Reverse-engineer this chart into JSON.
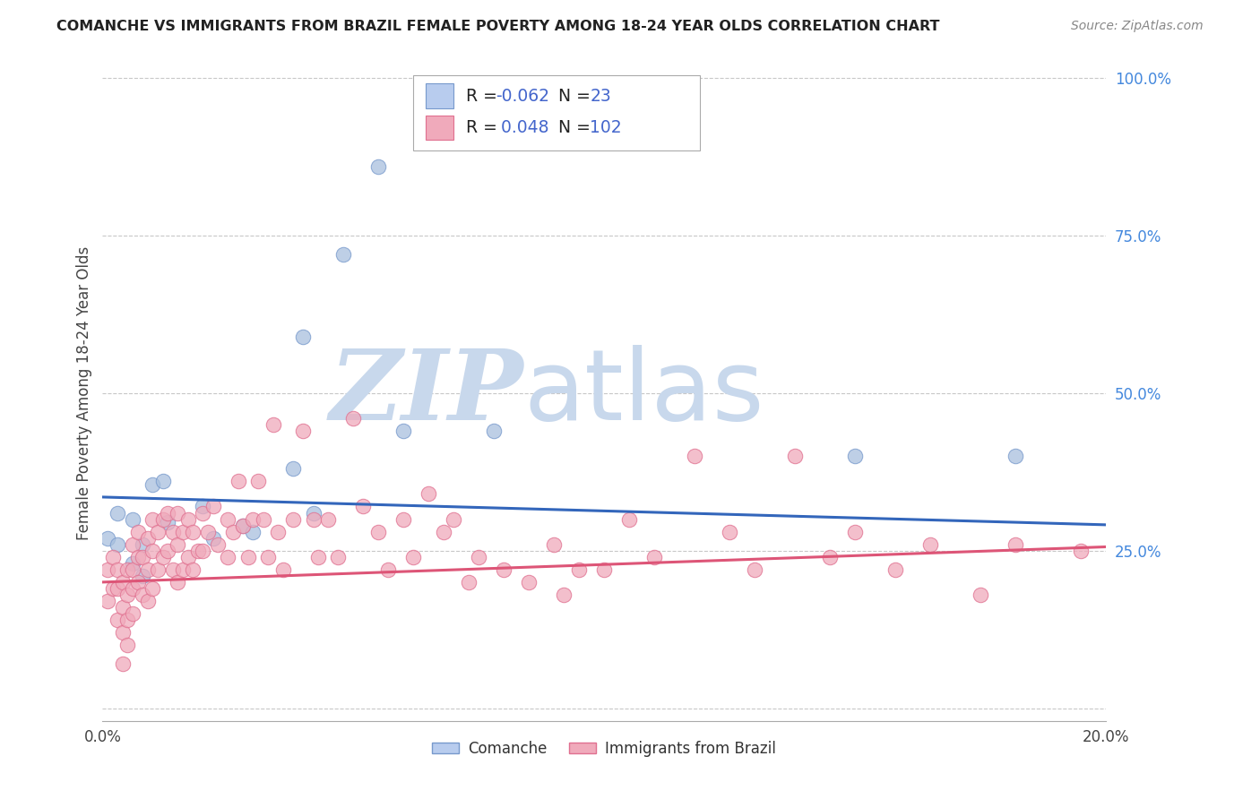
{
  "title": "COMANCHE VS IMMIGRANTS FROM BRAZIL FEMALE POVERTY AMONG 18-24 YEAR OLDS CORRELATION CHART",
  "source": "Source: ZipAtlas.com",
  "ylabel": "Female Poverty Among 18-24 Year Olds",
  "background_color": "#ffffff",
  "xlim": [
    0.0,
    0.2
  ],
  "ylim": [
    -0.02,
    1.02
  ],
  "yticks": [
    0.0,
    0.25,
    0.5,
    0.75,
    1.0
  ],
  "ytick_labels_right": [
    "",
    "25.0%",
    "50.0%",
    "75.0%",
    "100.0%"
  ],
  "watermark_zip": "ZIP",
  "watermark_atlas": "atlas",
  "watermark_color": "#c8d8ec",
  "series": [
    {
      "name": "Comanche",
      "R": -0.062,
      "N": 23,
      "scatter_color": "#a8c0de",
      "edge_color": "#7799cc",
      "trend_color": "#3366bb",
      "trend_intercept": 0.335,
      "trend_slope": -0.22,
      "points_x": [
        0.001,
        0.003,
        0.003,
        0.006,
        0.006,
        0.008,
        0.008,
        0.01,
        0.012,
        0.013,
        0.02,
        0.022,
        0.028,
        0.03,
        0.038,
        0.04,
        0.042,
        0.048,
        0.055,
        0.06,
        0.078,
        0.15,
        0.182
      ],
      "points_y": [
        0.27,
        0.31,
        0.26,
        0.3,
        0.23,
        0.26,
        0.21,
        0.355,
        0.36,
        0.295,
        0.32,
        0.27,
        0.29,
        0.28,
        0.38,
        0.59,
        0.31,
        0.72,
        0.86,
        0.44,
        0.44,
        0.4,
        0.4
      ]
    },
    {
      "name": "Immigrants from Brazil",
      "R": 0.048,
      "N": 102,
      "scatter_color": "#f0aabb",
      "edge_color": "#e07090",
      "trend_color": "#dd5577",
      "trend_intercept": 0.2,
      "trend_slope": 0.28,
      "points_x": [
        0.001,
        0.001,
        0.002,
        0.002,
        0.003,
        0.003,
        0.003,
        0.004,
        0.004,
        0.004,
        0.004,
        0.005,
        0.005,
        0.005,
        0.005,
        0.006,
        0.006,
        0.006,
        0.006,
        0.007,
        0.007,
        0.007,
        0.008,
        0.008,
        0.009,
        0.009,
        0.009,
        0.01,
        0.01,
        0.01,
        0.011,
        0.011,
        0.012,
        0.012,
        0.013,
        0.013,
        0.014,
        0.014,
        0.015,
        0.015,
        0.015,
        0.016,
        0.016,
        0.017,
        0.017,
        0.018,
        0.018,
        0.019,
        0.02,
        0.02,
        0.021,
        0.022,
        0.023,
        0.025,
        0.025,
        0.026,
        0.027,
        0.028,
        0.029,
        0.03,
        0.031,
        0.032,
        0.033,
        0.034,
        0.035,
        0.036,
        0.038,
        0.04,
        0.042,
        0.043,
        0.045,
        0.047,
        0.05,
        0.052,
        0.055,
        0.057,
        0.06,
        0.062,
        0.065,
        0.068,
        0.07,
        0.073,
        0.075,
        0.08,
        0.085,
        0.09,
        0.092,
        0.095,
        0.1,
        0.105,
        0.11,
        0.118,
        0.125,
        0.13,
        0.138,
        0.145,
        0.15,
        0.158,
        0.165,
        0.175,
        0.182,
        0.195
      ],
      "points_y": [
        0.22,
        0.17,
        0.24,
        0.19,
        0.22,
        0.19,
        0.14,
        0.2,
        0.16,
        0.12,
        0.07,
        0.22,
        0.18,
        0.14,
        0.1,
        0.26,
        0.22,
        0.19,
        0.15,
        0.28,
        0.24,
        0.2,
        0.24,
        0.18,
        0.27,
        0.22,
        0.17,
        0.3,
        0.25,
        0.19,
        0.28,
        0.22,
        0.3,
        0.24,
        0.31,
        0.25,
        0.28,
        0.22,
        0.31,
        0.26,
        0.2,
        0.28,
        0.22,
        0.3,
        0.24,
        0.28,
        0.22,
        0.25,
        0.31,
        0.25,
        0.28,
        0.32,
        0.26,
        0.3,
        0.24,
        0.28,
        0.36,
        0.29,
        0.24,
        0.3,
        0.36,
        0.3,
        0.24,
        0.45,
        0.28,
        0.22,
        0.3,
        0.44,
        0.3,
        0.24,
        0.3,
        0.24,
        0.46,
        0.32,
        0.28,
        0.22,
        0.3,
        0.24,
        0.34,
        0.28,
        0.3,
        0.2,
        0.24,
        0.22,
        0.2,
        0.26,
        0.18,
        0.22,
        0.22,
        0.3,
        0.24,
        0.4,
        0.28,
        0.22,
        0.4,
        0.24,
        0.28,
        0.22,
        0.26,
        0.18,
        0.26,
        0.25
      ]
    }
  ],
  "legend_box": {
    "blue_R": "-0.062",
    "blue_N": "23",
    "pink_R": "0.048",
    "pink_N": "102",
    "R_color": "#4466cc",
    "N_color": "#4466cc",
    "text_color": "#222222"
  }
}
